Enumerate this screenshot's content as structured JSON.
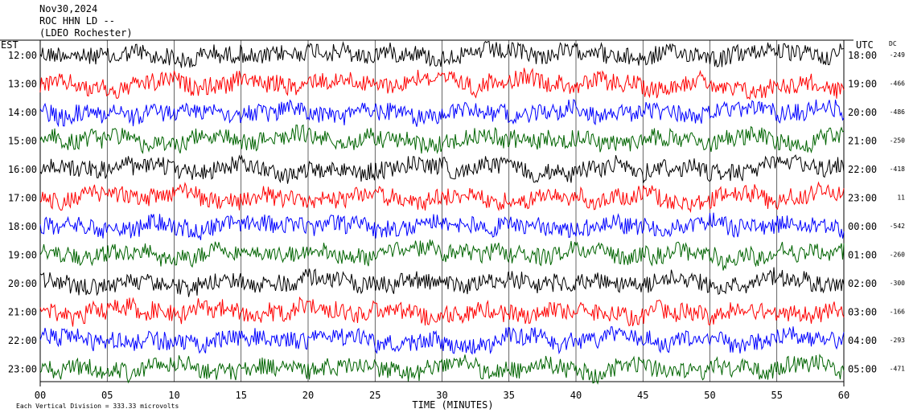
{
  "header": {
    "date": "Nov30,2024",
    "station": "ROC HHN LD --",
    "location": "(LDEO Rochester)"
  },
  "labels": {
    "left_tz": "EST",
    "right_tz": "UTC",
    "dc": "DC",
    "xlabel": "TIME (MINUTES)",
    "scale_note": "Each Vertical Division =  333.33 microvolts"
  },
  "chart_data": {
    "type": "line",
    "title": "",
    "xlabel": "TIME (MINUTES)",
    "xlim": [
      0,
      60
    ],
    "x_ticks": [
      "00",
      "05",
      "10",
      "15",
      "20",
      "25",
      "30",
      "35",
      "40",
      "45",
      "50",
      "55",
      "60"
    ],
    "trace_colors": [
      "#000000",
      "#ff0000",
      "#0000ff",
      "#006400"
    ],
    "traces": [
      {
        "est": "12:00",
        "utc": "18:00",
        "dc": "-249"
      },
      {
        "est": "13:00",
        "utc": "19:00",
        "dc": "-466"
      },
      {
        "est": "14:00",
        "utc": "20:00",
        "dc": "-486"
      },
      {
        "est": "15:00",
        "utc": "21:00",
        "dc": "-250"
      },
      {
        "est": "16:00",
        "utc": "22:00",
        "dc": "-418"
      },
      {
        "est": "17:00",
        "utc": "23:00",
        "dc": "11"
      },
      {
        "est": "18:00",
        "utc": "00:00",
        "dc": "-542"
      },
      {
        "est": "19:00",
        "utc": "01:00",
        "dc": "-260"
      },
      {
        "est": "20:00",
        "utc": "02:00",
        "dc": "-300"
      },
      {
        "est": "21:00",
        "utc": "03:00",
        "dc": "-166"
      },
      {
        "est": "22:00",
        "utc": "04:00",
        "dc": "-293"
      },
      {
        "est": "23:00",
        "utc": "05:00",
        "dc": "-471"
      }
    ]
  }
}
